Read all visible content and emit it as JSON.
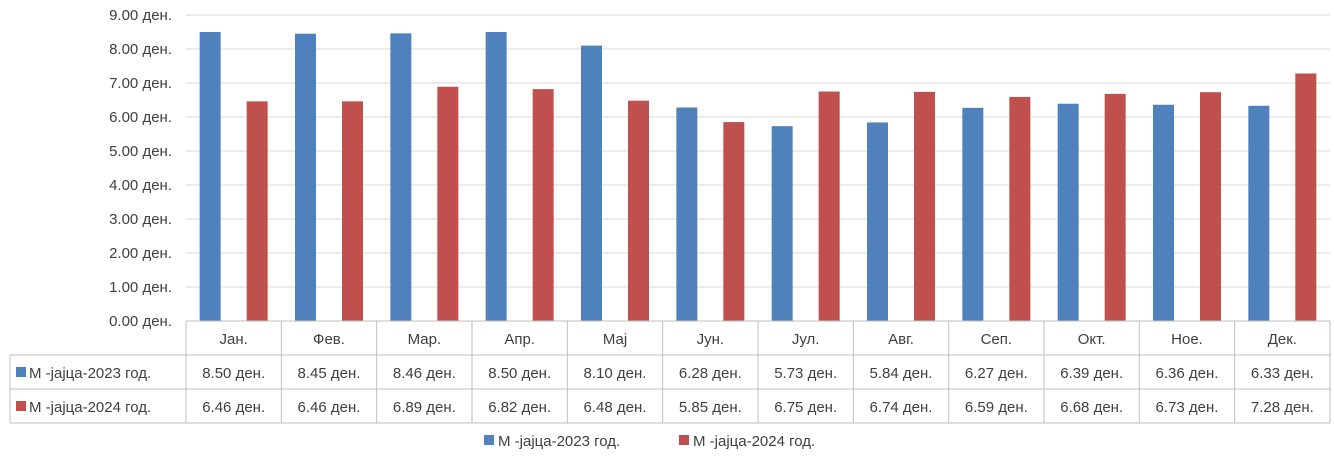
{
  "chart_data": {
    "type": "bar",
    "categories": [
      "Јан.",
      "Фев.",
      "Мар.",
      "Апр.",
      "Мај",
      "Јун.",
      "Јул.",
      "Авг.",
      "Сеп.",
      "Окт.",
      "Ное.",
      "Дек."
    ],
    "series": [
      {
        "name": "M -јајца-2023 год.",
        "color": "#4F81BD",
        "values": [
          8.5,
          8.45,
          8.46,
          8.5,
          8.1,
          6.28,
          5.73,
          5.84,
          6.27,
          6.39,
          6.36,
          6.33
        ],
        "labels": [
          "8.50 ден.",
          "8.45 ден.",
          "8.46 ден.",
          "8.50 ден.",
          "8.10 ден.",
          "6.28 ден.",
          "5.73 ден.",
          "5.84 ден.",
          "6.27 ден.",
          "6.39 ден.",
          "6.36 ден.",
          "6.33 ден."
        ]
      },
      {
        "name": "M -јајца-2024 год.",
        "color": "#C0504D",
        "values": [
          6.46,
          6.46,
          6.89,
          6.82,
          6.48,
          5.85,
          6.75,
          6.74,
          6.59,
          6.68,
          6.73,
          7.28
        ],
        "labels": [
          "6.46 ден.",
          "6.46 ден.",
          "6.89 ден.",
          "6.82 ден.",
          "6.48 ден.",
          "5.85 ден.",
          "6.75 ден.",
          "6.74 ден.",
          "6.59 ден.",
          "6.68 ден.",
          "6.73 ден.",
          "7.28 ден."
        ]
      }
    ],
    "y_ticks": [
      {
        "value": 0,
        "label": "0.00 ден."
      },
      {
        "value": 1,
        "label": "1.00 ден."
      },
      {
        "value": 2,
        "label": "2.00 ден."
      },
      {
        "value": 3,
        "label": "3.00 ден."
      },
      {
        "value": 4,
        "label": "4.00 ден."
      },
      {
        "value": 5,
        "label": "5.00 ден."
      },
      {
        "value": 6,
        "label": "6.00 ден."
      },
      {
        "value": 7,
        "label": "7.00 ден."
      },
      {
        "value": 8,
        "label": "8.00 ден."
      },
      {
        "value": 9,
        "label": "9.00 ден."
      }
    ],
    "ylim": [
      0,
      9
    ],
    "grid": true,
    "data_table": true,
    "legend_position": "bottom"
  }
}
